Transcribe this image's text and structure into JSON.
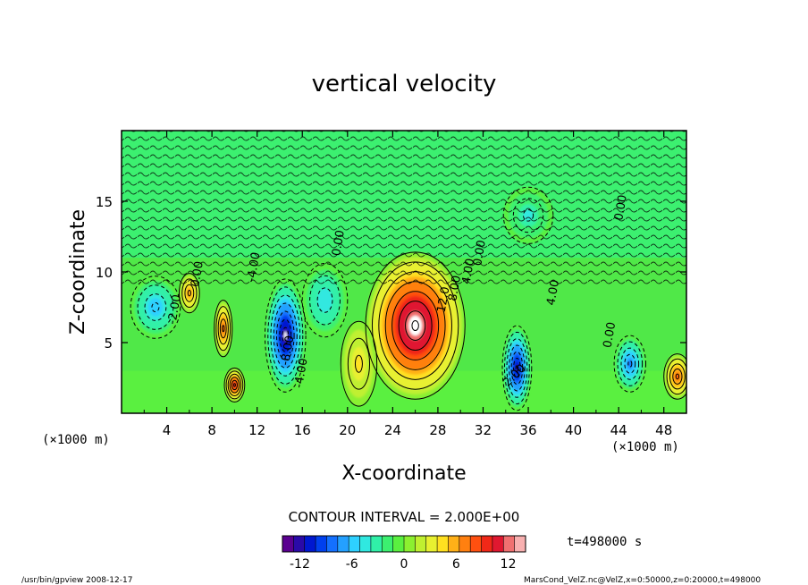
{
  "chart_data": {
    "type": "heatmap",
    "title": "vertical velocity",
    "xlabel": "X-coordinate",
    "ylabel": "Z-coordinate",
    "x_unit_left": "(×1000 m)",
    "x_unit_right": "(×1000 m)",
    "xlim": [
      0,
      50
    ],
    "ylim": [
      0,
      20
    ],
    "x_ticks": [
      4,
      8,
      12,
      16,
      20,
      24,
      28,
      32,
      36,
      40,
      44,
      48
    ],
    "y_ticks": [
      5,
      10,
      15
    ],
    "contour_interval_text": "CONTOUR INTERVAL = 2.000E+00",
    "colorbar": {
      "min": -14,
      "max": 14,
      "ticks": [
        -12,
        -6,
        0,
        6,
        12
      ],
      "colors": [
        "#5a0090",
        "#2a0aa8",
        "#0018d0",
        "#0040ee",
        "#1470ff",
        "#24a0ff",
        "#2ed0ff",
        "#30e8e0",
        "#30f0a8",
        "#3cf070",
        "#5af040",
        "#8cf030",
        "#c0f030",
        "#e8f030",
        "#ffe020",
        "#ffb018",
        "#ff8010",
        "#ff5010",
        "#f02818",
        "#e01830",
        "#f07070",
        "#f8b0b0"
      ]
    },
    "time_label": "t=498000 s",
    "blobs": [
      {
        "x": 26.0,
        "z": 6.2,
        "value": 14,
        "rx": 4.4,
        "rz": 5.2
      },
      {
        "x": 14.5,
        "z": 5.5,
        "value": -13,
        "rx": 1.8,
        "rz": 4.0
      },
      {
        "x": 35.0,
        "z": 3.2,
        "value": -12,
        "rx": 1.3,
        "rz": 3.0
      },
      {
        "x": 45.0,
        "z": 3.5,
        "value": -8,
        "rx": 1.4,
        "rz": 2.0
      },
      {
        "x": 49.2,
        "z": 2.6,
        "value": 8,
        "rx": 1.2,
        "rz": 1.6
      },
      {
        "x": 9.0,
        "z": 6.0,
        "value": 8,
        "rx": 0.8,
        "rz": 2.0
      },
      {
        "x": 6.0,
        "z": 8.5,
        "value": 6,
        "rx": 0.9,
        "rz": 1.4
      },
      {
        "x": 10.0,
        "z": 2.0,
        "value": 10,
        "rx": 0.9,
        "rz": 1.2
      },
      {
        "x": 3.0,
        "z": 7.5,
        "value": -6,
        "rx": 2.2,
        "rz": 2.2
      },
      {
        "x": 18.0,
        "z": 8.0,
        "value": -5,
        "rx": 2.0,
        "rz": 2.6
      },
      {
        "x": 36.0,
        "z": 14.0,
        "value": -4,
        "rx": 2.2,
        "rz": 2.0
      },
      {
        "x": 21.0,
        "z": 3.5,
        "value": 4,
        "rx": 1.6,
        "rz": 3.0
      }
    ],
    "contour_labels": [
      {
        "x": 19.5,
        "z": 12.0,
        "text": "0.00",
        "rotate": -80
      },
      {
        "x": 12.0,
        "z": 10.3,
        "text": "-4.00",
        "rotate": -80
      },
      {
        "x": 7.0,
        "z": 9.8,
        "text": "0.00",
        "rotate": -80
      },
      {
        "x": 5.0,
        "z": 7.3,
        "text": "-2.00",
        "rotate": -80
      },
      {
        "x": 15.0,
        "z": 4.4,
        "text": "-8.00",
        "rotate": -80
      },
      {
        "x": 16.2,
        "z": 2.8,
        "text": "-4.00",
        "rotate": -80
      },
      {
        "x": 28.8,
        "z": 8.0,
        "text": "12.0",
        "rotate": -80
      },
      {
        "x": 29.8,
        "z": 8.8,
        "text": "8.00",
        "rotate": -80
      },
      {
        "x": 31.0,
        "z": 10.0,
        "text": "4.00",
        "rotate": -80
      },
      {
        "x": 32.0,
        "z": 11.3,
        "text": "0.00",
        "rotate": -80
      },
      {
        "x": 38.5,
        "z": 8.5,
        "text": "4.00",
        "rotate": -80
      },
      {
        "x": 44.5,
        "z": 14.5,
        "text": "0.00",
        "rotate": -80
      },
      {
        "x": 43.5,
        "z": 5.5,
        "text": "0.00",
        "rotate": -80
      },
      {
        "x": 35.0,
        "z": 2.5,
        "text": "2.00",
        "rotate": -45
      }
    ]
  },
  "footer": {
    "left": "/usr/bin/gpview   2008-12-17",
    "right": "MarsCond_VelZ.nc@VelZ,x=0:50000,z=0:20000,t=498000"
  }
}
